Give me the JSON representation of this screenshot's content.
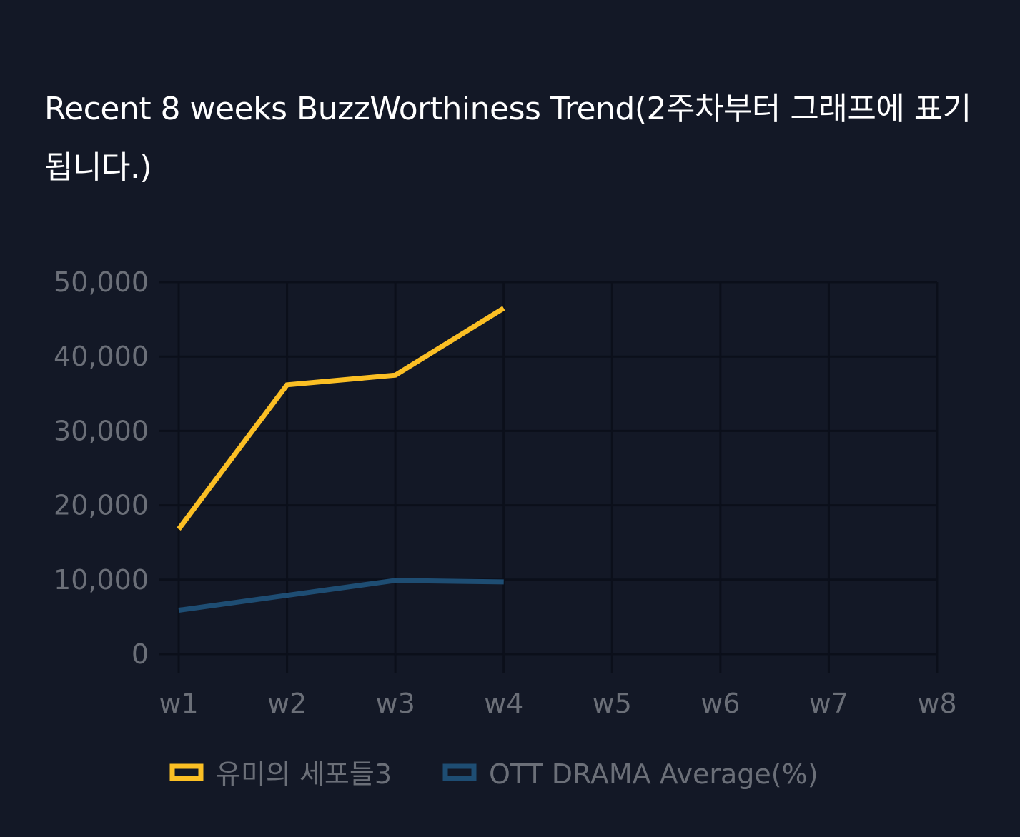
{
  "title": "Recent 8 weeks BuzzWorthiness Trend(2주차부터 그래프에 표기됩니다.)",
  "colors": {
    "background": "#131826",
    "grid": "#0b0f1a",
    "series_1": "#fbbf24",
    "series_2": "#1e4d73"
  },
  "chart_data": {
    "type": "line",
    "title": "Recent 8 weeks BuzzWorthiness Trend(2주차부터 그래프에 표기됩니다.)",
    "x": [
      "w1",
      "w2",
      "w3",
      "w4",
      "w5",
      "w6",
      "w7",
      "w8"
    ],
    "y_ticks": [
      "0",
      "10,000",
      "20,000",
      "30,000",
      "40,000",
      "50,000"
    ],
    "ylim": [
      0,
      50000
    ],
    "grid": true,
    "legend_position": "bottom",
    "series": [
      {
        "name": "유미의 세포들3",
        "values": [
          16800,
          36200,
          37500,
          46500,
          null,
          null,
          null,
          null
        ]
      },
      {
        "name": "OTT DRAMA Average(%)",
        "values": [
          5900,
          7900,
          9900,
          9700,
          null,
          null,
          null,
          null
        ]
      }
    ]
  }
}
